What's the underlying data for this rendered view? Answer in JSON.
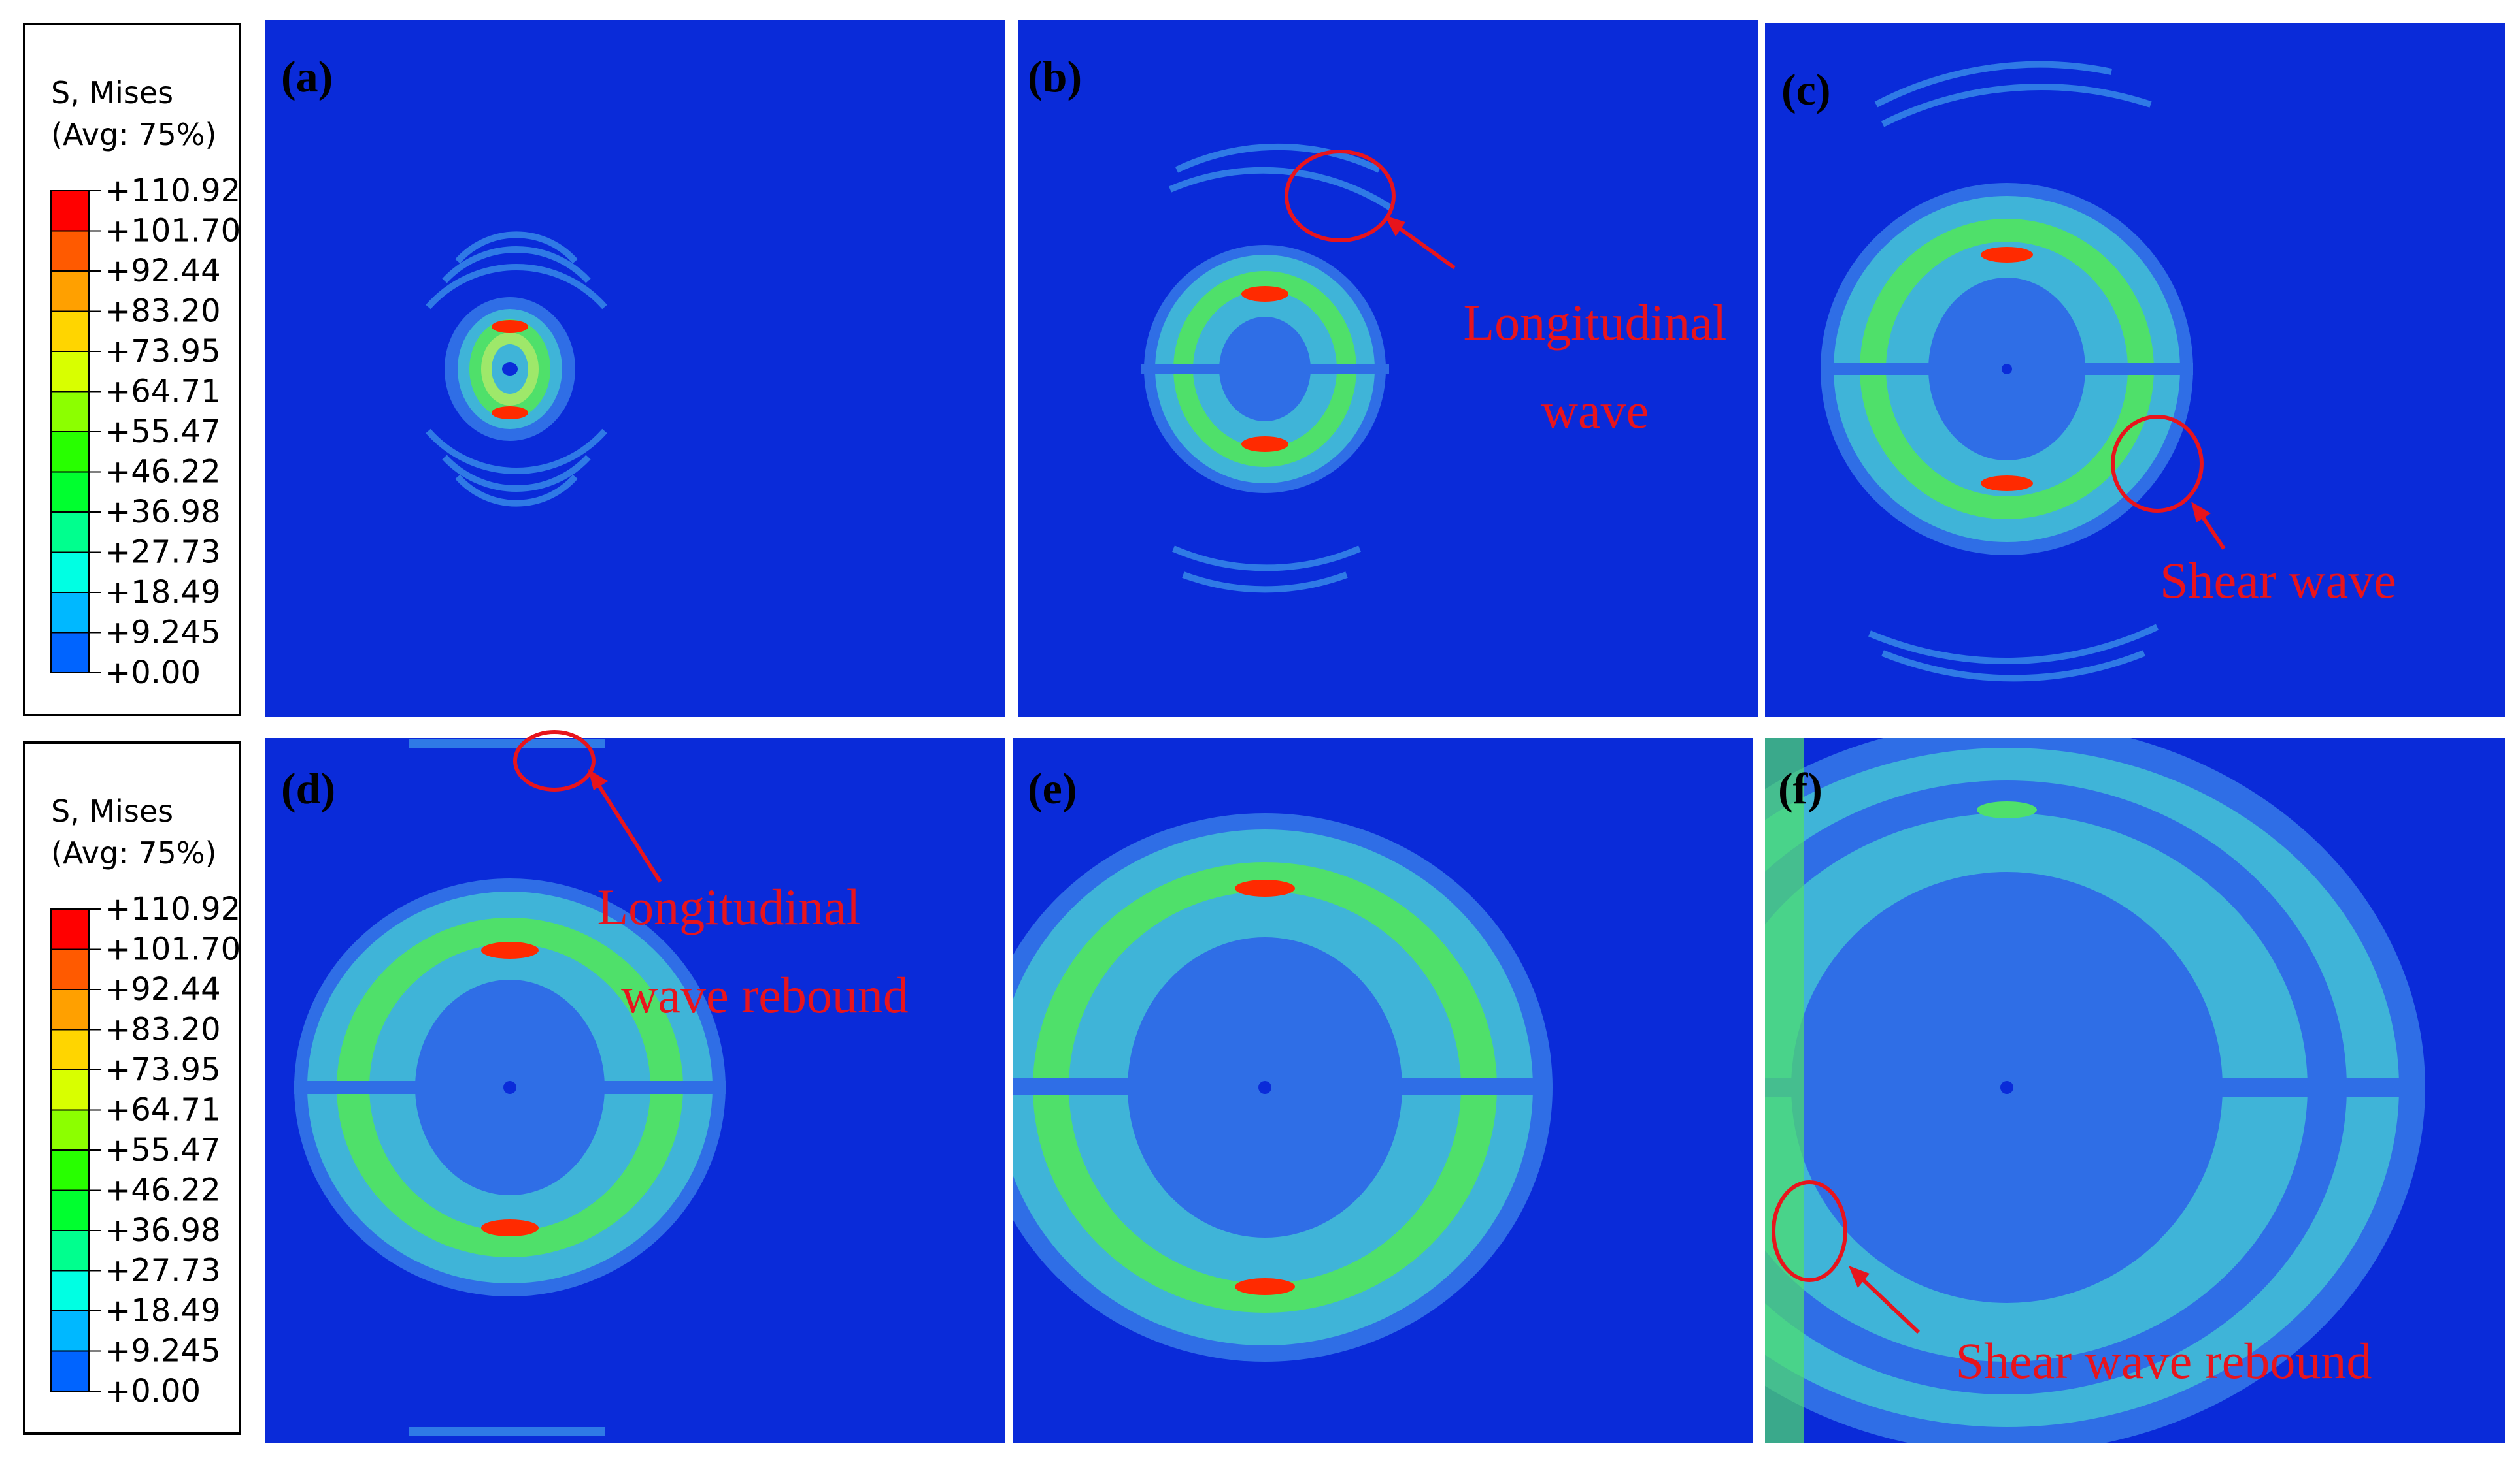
{
  "legend": {
    "title_line1": "S, Mises",
    "title_line2": "(Avg: 75%)",
    "levels": [
      "+110.92",
      "+101.70",
      "+92.44",
      "+83.20",
      "+73.95",
      "+64.71",
      "+55.47",
      "+46.22",
      "+36.98",
      "+27.73",
      "+18.49",
      "+9.245",
      "+0.00"
    ],
    "colors": [
      "#ff0000",
      "#ff5a00",
      "#ffa000",
      "#ffd500",
      "#d8ff00",
      "#8cff00",
      "#28ff00",
      "#00ff2f",
      "#00ff8e",
      "#00ffe3",
      "#00b8ff",
      "#0064ff",
      "#0000ff"
    ]
  },
  "panels": [
    {
      "label": "(a)"
    },
    {
      "label": "(b)"
    },
    {
      "label": "(c)"
    },
    {
      "label": "(d)"
    },
    {
      "label": "(e)"
    },
    {
      "label": "(f)"
    }
  ],
  "annotations": {
    "b_line1": "Longitudinal",
    "b_line2": "wave",
    "c": "Shear wave",
    "d_line1": "Longitudinal",
    "d_line2": "wave rebound",
    "f": "Shear wave rebound"
  },
  "colors": {
    "background": "#0a2bd9",
    "annotation": "#e8141c",
    "field_low": "#2f6ee6",
    "field_mid": "#3fb4d8",
    "field_high": "#4fe06a",
    "hotspot": "#ff2a00"
  }
}
